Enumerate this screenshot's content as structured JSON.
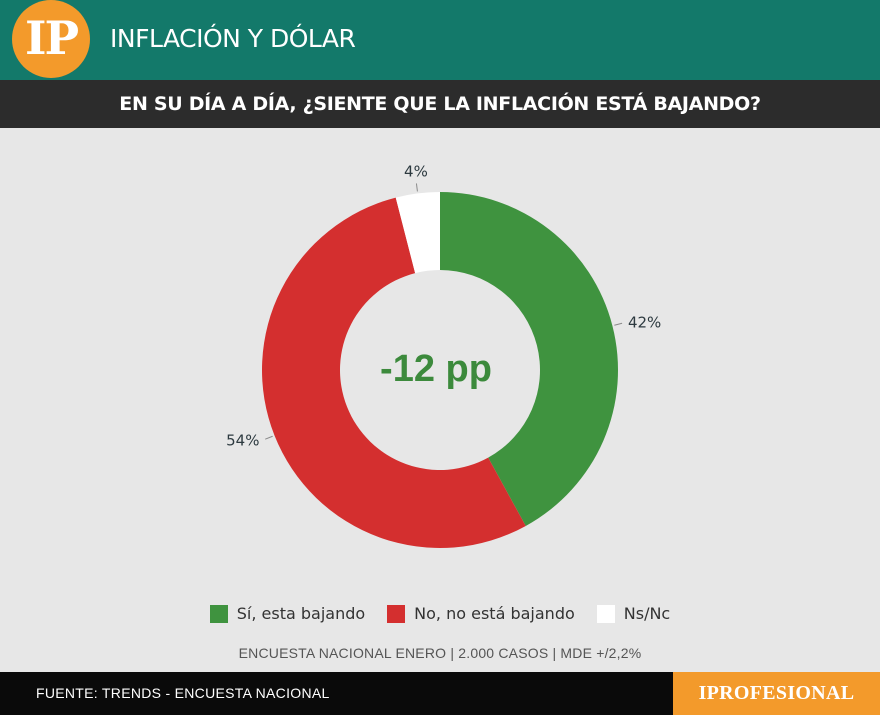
{
  "header": {
    "logo_text": "IP",
    "section_title": "INFLACIÓN Y DÓLAR",
    "colors": {
      "header_bg": "#13796a",
      "logo_bg": "#f39a2b"
    }
  },
  "question": "EN SU DÍA A DÍA, ¿SIENTE QUE LA INFLACIÓN ESTÁ BAJANDO?",
  "chart_data": {
    "type": "pie",
    "donut": true,
    "categories": [
      "Sí, esta bajando",
      "No, no está bajando",
      "Ns/Nc"
    ],
    "values": [
      42,
      54,
      4
    ],
    "value_labels": [
      "42%",
      "54%",
      "4%"
    ],
    "colors": [
      "#3f933f",
      "#d42f2f",
      "#ffffff"
    ],
    "center_label": "-12 pp",
    "legend_position": "bottom"
  },
  "survey_note": "ENCUESTA NACIONAL ENERO | 2.000 CASOS | MDE +/2,2%",
  "footer": {
    "source": "FUENTE: TRENDS - ENCUESTA NACIONAL",
    "brand": "IPROFESIONAL"
  }
}
